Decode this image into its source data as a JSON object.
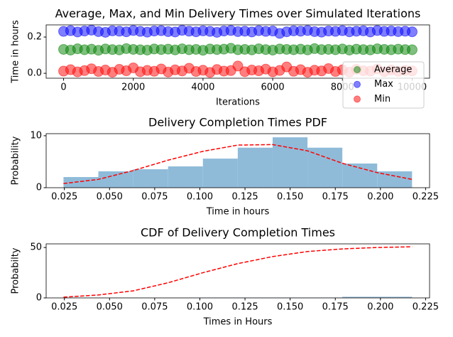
{
  "chart_data": [
    {
      "type": "scatter",
      "title": "Average, Max, and Min Delivery Times over Simulated Iterations",
      "x_label": "Iterations",
      "y_label": "Time in hours",
      "x": [
        0,
        200,
        400,
        600,
        800,
        1000,
        1200,
        1400,
        1600,
        1800,
        2000,
        2200,
        2400,
        2600,
        2800,
        3000,
        3200,
        3400,
        3600,
        3800,
        4000,
        4200,
        4400,
        4600,
        4800,
        5000,
        5200,
        5400,
        5600,
        5800,
        6000,
        6200,
        6400,
        6600,
        6800,
        7000,
        7200,
        7400,
        7600,
        7800,
        8000,
        8200,
        8400,
        8600,
        8800,
        9000,
        9200,
        9400,
        9600,
        9800,
        10000
      ],
      "series": [
        {
          "name": "Average",
          "color": "#008000",
          "values": [
            0.132,
            0.128,
            0.135,
            0.13,
            0.133,
            0.127,
            0.134,
            0.131,
            0.129,
            0.136,
            0.132,
            0.13,
            0.128,
            0.134,
            0.131,
            0.133,
            0.129,
            0.135,
            0.13,
            0.132,
            0.127,
            0.134,
            0.131,
            0.133,
            0.138,
            0.13,
            0.132,
            0.129,
            0.135,
            0.131,
            0.128,
            0.134,
            0.132,
            0.13,
            0.133,
            0.129,
            0.136,
            0.131,
            0.132,
            0.13,
            0.134,
            0.128,
            0.133,
            0.131,
            0.129,
            0.135,
            0.132,
            0.13,
            0.133,
            0.131,
            0.13
          ]
        },
        {
          "name": "Max",
          "color": "#0000ff",
          "values": [
            0.231,
            0.235,
            0.228,
            0.233,
            0.238,
            0.23,
            0.226,
            0.234,
            0.232,
            0.229,
            0.236,
            0.231,
            0.227,
            0.233,
            0.235,
            0.23,
            0.228,
            0.237,
            0.232,
            0.229,
            0.234,
            0.231,
            0.226,
            0.233,
            0.236,
            0.23,
            0.232,
            0.228,
            0.235,
            0.231,
            0.233,
            0.22,
            0.229,
            0.234,
            0.232,
            0.236,
            0.23,
            0.227,
            0.233,
            0.231,
            0.235,
            0.229,
            0.232,
            0.234,
            0.228,
            0.236,
            0.231,
            0.233,
            0.23,
            0.232,
            0.229
          ]
        },
        {
          "name": "Min",
          "color": "#ff0000",
          "values": [
            0.012,
            0.02,
            0.008,
            0.015,
            0.025,
            0.01,
            0.018,
            0.006,
            0.022,
            0.014,
            0.03,
            0.009,
            0.016,
            0.011,
            0.024,
            0.007,
            0.019,
            0.013,
            0.028,
            0.01,
            0.017,
            0.005,
            0.021,
            0.012,
            0.015,
            0.04,
            0.009,
            0.018,
            0.014,
            0.023,
            0.008,
            0.016,
            0.035,
            0.011,
            0.02,
            0.006,
            0.017,
            0.013,
            0.026,
            0.01,
            0.019,
            0.007,
            0.022,
            0.014,
            0.012,
            0.024,
            0.009,
            0.018,
            0.011,
            0.016,
            0.013
          ]
        }
      ],
      "xlim": [
        -500,
        10500
      ],
      "ylim": [
        -0.027,
        0.267
      ],
      "xticks": [
        0,
        2000,
        4000,
        6000,
        8000,
        10000
      ],
      "yticks": [
        {
          "value": 0,
          "label": "0.0"
        },
        0.2
      ],
      "legend": "lower right",
      "grid": false
    },
    {
      "type": "histogram",
      "title": "Delivery Completion Times PDF",
      "x_label": "Time in hours",
      "y_label": "Probability",
      "bins": [
        0.0245,
        0.0438,
        0.0631,
        0.0824,
        0.1017,
        0.121,
        0.1403,
        0.1596,
        0.1789,
        0.1982,
        0.2175
      ],
      "values": [
        2.05,
        3.15,
        3.55,
        4.1,
        5.6,
        7.7,
        9.7,
        7.7,
        4.65,
        3.15
      ],
      "color": "#8fbbd9",
      "line": {
        "color": "#ff0000",
        "style": "dashed",
        "values": [
          0.8,
          1.6,
          3.3,
          5.3,
          7.0,
          8.2,
          8.3,
          7.1,
          4.7,
          2.9,
          1.6
        ]
      },
      "xlim": [
        0.0149,
        0.2272
      ],
      "ylim": [
        0,
        10.4
      ],
      "xticks": [
        0.025,
        {
          "value": 0.05,
          "label": "0.050"
        },
        0.075,
        {
          "value": 0.1,
          "label": "0.100"
        },
        0.125,
        {
          "value": 0.15,
          "label": "0.150"
        },
        0.175,
        {
          "value": 0.2,
          "label": "0.200"
        },
        0.225
      ],
      "yticks": [
        0,
        10
      ],
      "grid": false
    },
    {
      "type": "histogram",
      "title": "CDF of Delivery Completion Times",
      "x_label": "Times in Hours",
      "y_label": "Probabilty",
      "bins": [
        0.0245,
        0.0438,
        0.0631,
        0.0824,
        0.1017,
        0.121,
        0.1403,
        0.1596,
        0.1789,
        0.1982,
        0.2175
      ],
      "values": [
        0.1,
        0.1,
        0.2,
        0.2,
        0.3,
        0.3,
        0.3,
        0.3,
        1.1,
        1.1
      ],
      "color": "#8fbbd9",
      "line": {
        "color": "#ff0000",
        "style": "dashed",
        "values": [
          0.7,
          2.9,
          7.0,
          15.0,
          25.0,
          34.0,
          41.0,
          46.0,
          48.6,
          50.0,
          50.7
        ]
      },
      "xlim": [
        0.0149,
        0.2272
      ],
      "ylim": [
        0,
        53.6
      ],
      "xticks": [
        0.025,
        {
          "value": 0.05,
          "label": "0.050"
        },
        0.075,
        {
          "value": 0.1,
          "label": "0.100"
        },
        0.125,
        {
          "value": 0.15,
          "label": "0.150"
        },
        0.175,
        {
          "value": 0.2,
          "label": "0.200"
        },
        0.225
      ],
      "yticks": [
        0,
        50
      ],
      "grid": false
    }
  ]
}
